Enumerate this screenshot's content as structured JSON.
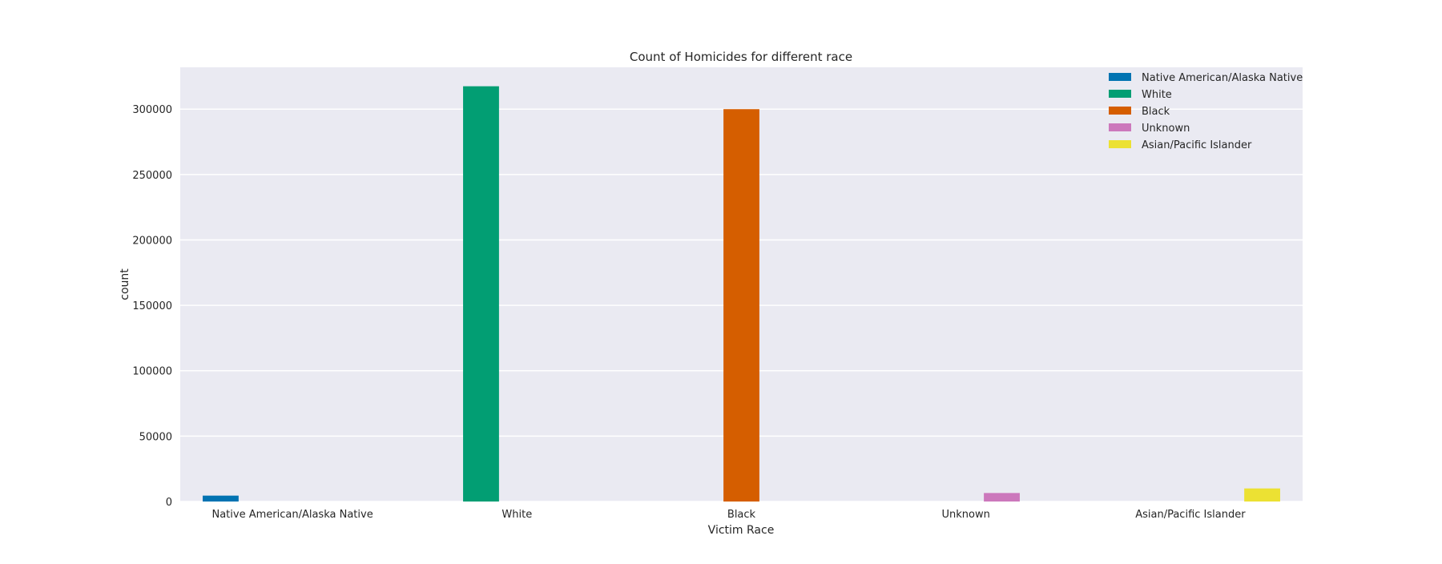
{
  "chart_data": {
    "type": "bar",
    "title": "Count of Homicides for different race",
    "xlabel": "Victim Race",
    "ylabel": "count",
    "categories": [
      "Native American/Alaska Native",
      "White",
      "Black",
      "Unknown",
      "Asian/Pacific Islander"
    ],
    "series": [
      {
        "name": "Native American/Alaska Native",
        "color": "#0173b2",
        "values": [
          4500,
          0,
          0,
          0,
          0
        ]
      },
      {
        "name": "White",
        "color": "#029e73",
        "values": [
          0,
          317500,
          0,
          0,
          0
        ]
      },
      {
        "name": "Black",
        "color": "#d55e00",
        "values": [
          0,
          0,
          300000,
          0,
          0
        ]
      },
      {
        "name": "Unknown",
        "color": "#cc78bc",
        "values": [
          0,
          0,
          0,
          6500,
          0
        ]
      },
      {
        "name": "Asian/Pacific Islander",
        "color": "#ece133",
        "values": [
          0,
          0,
          0,
          0,
          10000
        ]
      }
    ],
    "ylim": [
      0,
      332000
    ],
    "yticks": [
      0,
      50000,
      100000,
      150000,
      200000,
      250000,
      300000
    ],
    "grid": true,
    "legend_position": "top-right",
    "background_color": "#eaeaf2"
  }
}
